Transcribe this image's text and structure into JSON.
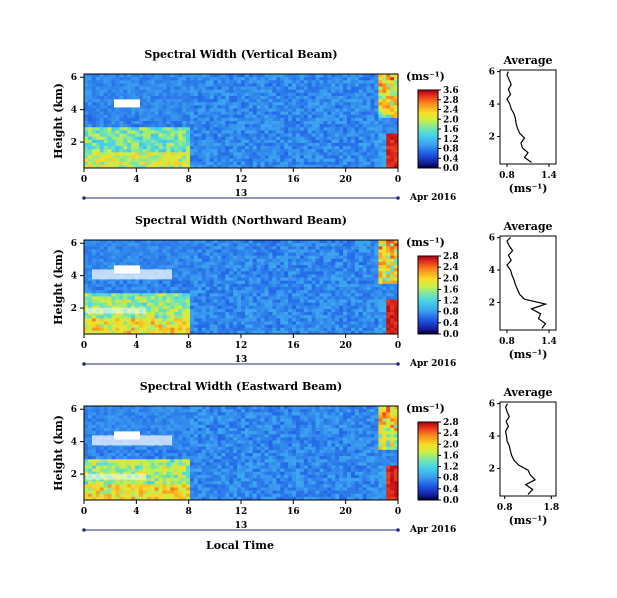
{
  "figure": {
    "x_axis_label": "Local Time",
    "date_label": "Apr 2016",
    "day_label": "13",
    "y_axis_label": "Height (km)",
    "unit_label": "(ms⁻¹)",
    "profile_title": "Average",
    "profile_xlabel": "(ms⁻¹)"
  },
  "chart_data": [
    {
      "type": "heatmap",
      "title": "Spectral Width (Vertical Beam)",
      "xlabel": "Local Time",
      "ylabel": "Height (km)",
      "x_ticks": [
        "0",
        "4",
        "8",
        "12",
        "16",
        "20",
        "0"
      ],
      "xlim": [
        0,
        24
      ],
      "y_ticks": [
        "2",
        "4",
        "6"
      ],
      "ylim": [
        0.4,
        6.2
      ],
      "colorbar": {
        "label": "(ms⁻¹)",
        "ticks": [
          "0.0",
          "0.4",
          "0.8",
          "1.2",
          "1.6",
          "2.0",
          "2.4",
          "2.8",
          "3.6"
        ],
        "range": [
          0,
          3.6
        ]
      },
      "profile": {
        "title": "Average",
        "xlabel": "(ms⁻¹)",
        "x_ticks": [
          "0.8",
          "1.4"
        ],
        "xlim": [
          0.7,
          1.5
        ],
        "y_ticks": [
          "2",
          "4",
          "6"
        ],
        "ylim": [
          0.3,
          6.1
        ],
        "heights": [
          0.4,
          0.7,
          1.0,
          1.3,
          1.6,
          1.9,
          2.2,
          2.5,
          2.8,
          3.1,
          3.4,
          3.7,
          4.0,
          4.3,
          4.6,
          4.9,
          5.2,
          5.5,
          5.8,
          6.0
        ],
        "values": [
          1.15,
          1.05,
          1.1,
          1.02,
          1.0,
          1.05,
          0.98,
          0.95,
          0.93,
          0.92,
          0.9,
          0.86,
          0.84,
          0.8,
          0.85,
          0.82,
          0.86,
          0.83,
          0.8,
          0.82
        ]
      }
    },
    {
      "type": "heatmap",
      "title": "Spectral Width (Northward Beam)",
      "xlabel": "Local Time",
      "ylabel": "Height (km)",
      "x_ticks": [
        "0",
        "4",
        "8",
        "12",
        "16",
        "20",
        "0"
      ],
      "xlim": [
        0,
        24
      ],
      "y_ticks": [
        "2",
        "4",
        "6"
      ],
      "ylim": [
        0.4,
        6.2
      ],
      "colorbar": {
        "label": "(ms⁻¹)",
        "ticks": [
          "0.0",
          "0.4",
          "0.8",
          "1.2",
          "1.6",
          "2.0",
          "2.4",
          "2.8"
        ],
        "range": [
          0,
          2.8
        ]
      },
      "profile": {
        "title": "Average",
        "xlabel": "(ms⁻¹)",
        "x_ticks": [
          "0.8",
          "1.4"
        ],
        "xlim": [
          0.7,
          1.5
        ],
        "y_ticks": [
          "2",
          "4",
          "6"
        ],
        "ylim": [
          0.3,
          6.1
        ],
        "heights": [
          0.4,
          0.7,
          1.0,
          1.3,
          1.6,
          1.9,
          2.2,
          2.5,
          2.8,
          3.1,
          3.4,
          3.7,
          4.0,
          4.3,
          4.6,
          4.9,
          5.2,
          5.5,
          5.8,
          6.0
        ],
        "values": [
          1.3,
          1.35,
          1.25,
          1.28,
          1.15,
          1.35,
          1.05,
          0.98,
          0.95,
          0.92,
          0.9,
          0.87,
          0.85,
          0.8,
          0.86,
          0.82,
          0.88,
          0.83,
          0.8,
          0.85
        ]
      }
    },
    {
      "type": "heatmap",
      "title": "Spectral Width (Eastward Beam)",
      "xlabel": "Local Time",
      "ylabel": "Height (km)",
      "x_ticks": [
        "0",
        "4",
        "8",
        "12",
        "16",
        "20",
        "0"
      ],
      "xlim": [
        0,
        24
      ],
      "y_ticks": [
        "2",
        "4",
        "6"
      ],
      "ylim": [
        0.4,
        6.2
      ],
      "colorbar": {
        "label": "(ms⁻¹)",
        "ticks": [
          "0.0",
          "0.4",
          "0.8",
          "1.2",
          "1.6",
          "2.0",
          "2.4",
          "2.8"
        ],
        "range": [
          0,
          2.8
        ]
      },
      "profile": {
        "title": "Average",
        "xlabel": "(ms⁻¹)",
        "x_ticks": [
          "0.8",
          "1.8"
        ],
        "xlim": [
          0.7,
          1.9
        ],
        "y_ticks": [
          "2",
          "4",
          "6"
        ],
        "ylim": [
          0.3,
          6.1
        ],
        "heights": [
          0.4,
          0.7,
          1.0,
          1.3,
          1.6,
          1.9,
          2.2,
          2.5,
          2.8,
          3.1,
          3.4,
          3.7,
          4.0,
          4.3,
          4.6,
          4.9,
          5.2,
          5.5,
          5.8,
          6.0
        ],
        "values": [
          1.3,
          1.4,
          1.25,
          1.45,
          1.35,
          1.3,
          1.1,
          1.0,
          0.95,
          0.92,
          0.9,
          0.85,
          0.84,
          0.82,
          0.88,
          0.83,
          0.9,
          0.85,
          0.82,
          0.86
        ]
      }
    }
  ]
}
